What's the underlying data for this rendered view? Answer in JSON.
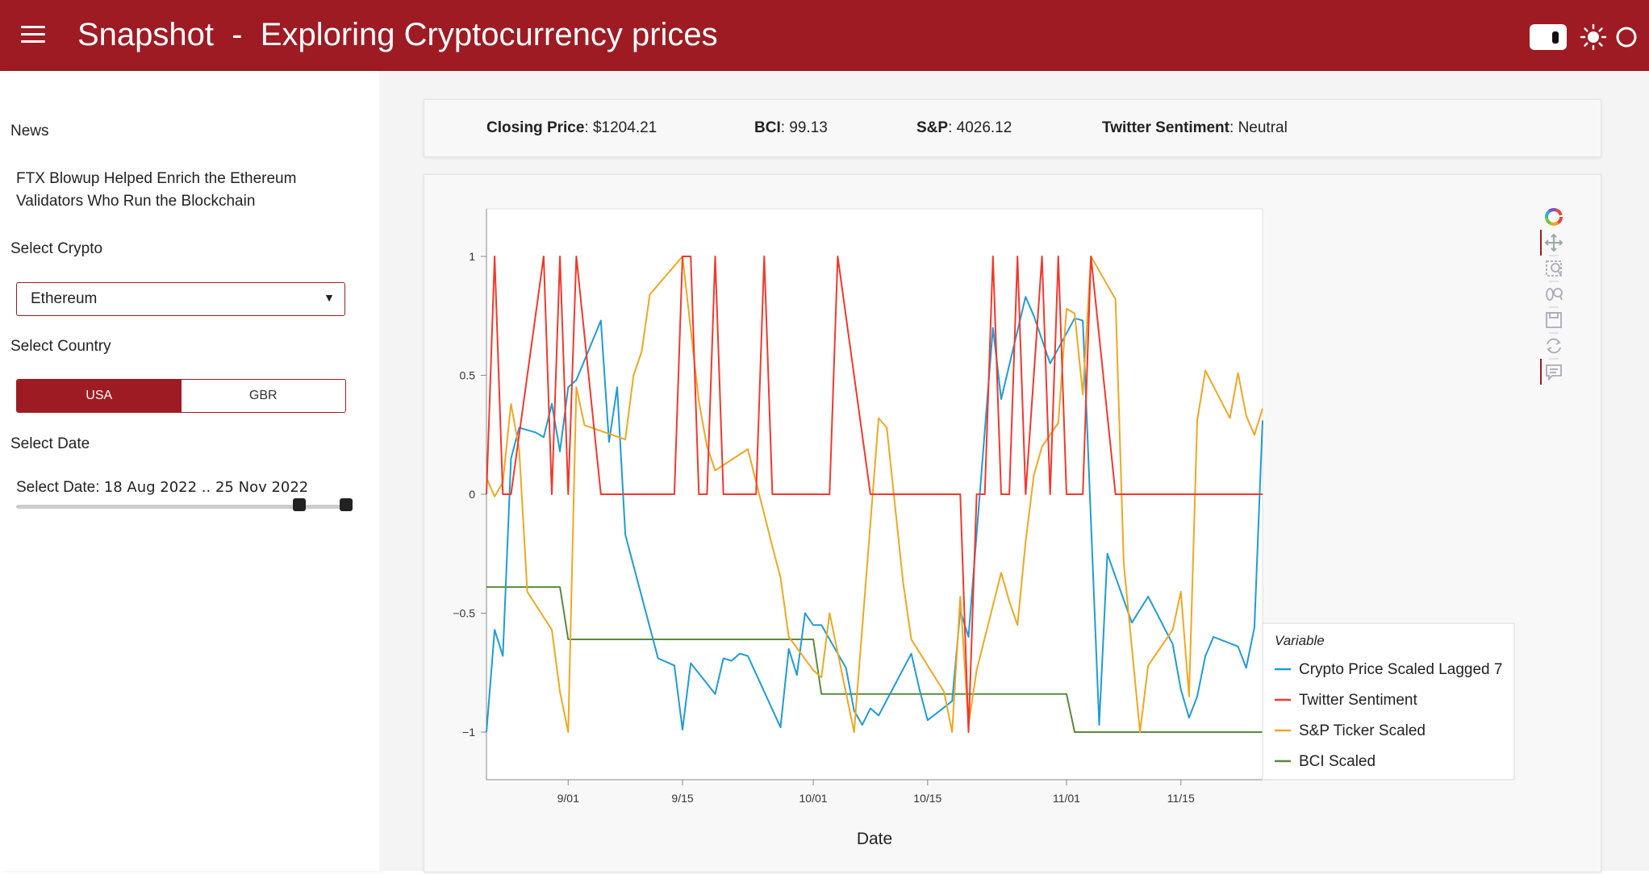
{
  "header": {
    "title": "Snapshot  -  Exploring Cryptocurrency prices",
    "menu_icon": "hamburger-icon",
    "toggle_icon": "toggle-icon",
    "theme_icon": "sun-icon",
    "brand_color": "#9e1b23"
  },
  "sidebar": {
    "news_label": "News",
    "news_headline": "FTX Blowup Helped Enrich the Ethereum Validators Who Run the Blockchain",
    "crypto_label": "Select Crypto",
    "crypto_value": "Ethereum",
    "crypto_dropdown_arrow": "▼",
    "country_label": "Select Country",
    "country_options": [
      "USA",
      "GBR"
    ],
    "country_selected": "USA",
    "date_label": "Select Date",
    "date_slider_prefix": "Select Date:",
    "date_slider_value": "18 Aug 2022 .. 25 Nov 2022"
  },
  "stats": {
    "closing_price_label": "Closing Price",
    "closing_price_value": "$1204.21",
    "bci_label": "BCI",
    "bci_value": "99.13",
    "sp_label": "S&P",
    "sp_value": "4026.12",
    "twitter_label": "Twitter Sentiment",
    "twitter_value": "Neutral"
  },
  "toolbar": {
    "icons": [
      "bokeh-logo-icon",
      "pan-icon",
      "box-zoom-icon",
      "wheel-zoom-icon",
      "save-icon",
      "reset-icon",
      "hover-icon"
    ]
  },
  "chart_data": {
    "type": "line",
    "title": "",
    "xlabel": "Date",
    "ylabel": "",
    "x_ticks": [
      "9/01",
      "9/15",
      "10/01",
      "10/15",
      "11/01",
      "11/15"
    ],
    "y_ticks": [
      "1",
      "0.5",
      "0",
      "−0.5",
      "−1"
    ],
    "ylim": [
      -1.2,
      1.2
    ],
    "xlim": [
      "2022-08-22",
      "2022-11-25"
    ],
    "grid": false,
    "legend_title": "Variable",
    "legend_position": "bottom-right",
    "series": [
      {
        "name": "Crypto Price Scaled Lagged 7",
        "color": "#1f9bd7",
        "points": [
          [
            "2022-08-22",
            -1.0
          ],
          [
            "2022-08-23",
            -0.57
          ],
          [
            "2022-08-24",
            -0.68
          ],
          [
            "2022-08-25",
            0.15
          ],
          [
            "2022-08-26",
            0.28
          ],
          [
            "2022-08-28",
            0.26
          ],
          [
            "2022-08-29",
            0.24
          ],
          [
            "2022-08-30",
            0.38
          ],
          [
            "2022-08-31",
            0.18
          ],
          [
            "2022-09-01",
            0.45
          ],
          [
            "2022-09-02",
            0.48
          ],
          [
            "2022-09-05",
            0.73
          ],
          [
            "2022-09-06",
            0.22
          ],
          [
            "2022-09-07",
            0.45
          ],
          [
            "2022-09-08",
            -0.17
          ],
          [
            "2022-09-12",
            -0.69
          ],
          [
            "2022-09-14",
            -0.72
          ],
          [
            "2022-09-15",
            -0.99
          ],
          [
            "2022-09-16",
            -0.71
          ],
          [
            "2022-09-19",
            -0.84
          ],
          [
            "2022-09-20",
            -0.69
          ],
          [
            "2022-09-21",
            -0.7
          ],
          [
            "2022-09-22",
            -0.67
          ],
          [
            "2022-09-23",
            -0.68
          ],
          [
            "2022-09-27",
            -0.98
          ],
          [
            "2022-09-28",
            -0.65
          ],
          [
            "2022-09-29",
            -0.76
          ],
          [
            "2022-09-30",
            -0.5
          ],
          [
            "2022-10-01",
            -0.55
          ],
          [
            "2022-10-02",
            -0.55
          ],
          [
            "2022-10-05",
            -0.73
          ],
          [
            "2022-10-06",
            -0.91
          ],
          [
            "2022-10-07",
            -0.97
          ],
          [
            "2022-10-08",
            -0.9
          ],
          [
            "2022-10-09",
            -0.93
          ],
          [
            "2022-10-13",
            -0.67
          ],
          [
            "2022-10-14",
            -0.82
          ],
          [
            "2022-10-15",
            -0.95
          ],
          [
            "2022-10-18",
            -0.87
          ],
          [
            "2022-10-19",
            -0.49
          ],
          [
            "2022-10-20",
            -0.6
          ],
          [
            "2022-10-23",
            0.7
          ],
          [
            "2022-10-24",
            0.4
          ],
          [
            "2022-10-27",
            0.83
          ],
          [
            "2022-10-28",
            0.75
          ],
          [
            "2022-10-30",
            0.55
          ],
          [
            "2022-11-02",
            0.74
          ],
          [
            "2022-11-03",
            0.73
          ],
          [
            "2022-11-05",
            -0.97
          ],
          [
            "2022-11-06",
            -0.25
          ],
          [
            "2022-11-09",
            -0.54
          ],
          [
            "2022-11-11",
            -0.43
          ],
          [
            "2022-11-14",
            -0.63
          ],
          [
            "2022-11-15",
            -0.82
          ],
          [
            "2022-11-16",
            -0.94
          ],
          [
            "2022-11-17",
            -0.85
          ],
          [
            "2022-11-18",
            -0.68
          ],
          [
            "2022-11-19",
            -0.6
          ],
          [
            "2022-11-22",
            -0.64
          ],
          [
            "2022-11-23",
            -0.73
          ],
          [
            "2022-11-24",
            -0.56
          ],
          [
            "2022-11-25",
            0.31
          ]
        ]
      },
      {
        "name": "Twitter Sentiment",
        "color": "#f2382c",
        "points": [
          [
            "2022-08-22",
            0
          ],
          [
            "2022-08-23",
            1
          ],
          [
            "2022-08-24",
            0
          ],
          [
            "2022-08-25",
            0
          ],
          [
            "2022-08-29",
            1
          ],
          [
            "2022-08-30",
            0
          ],
          [
            "2022-08-31",
            1
          ],
          [
            "2022-09-01",
            0
          ],
          [
            "2022-09-02",
            1
          ],
          [
            "2022-09-05",
            0
          ],
          [
            "2022-09-14",
            0
          ],
          [
            "2022-09-15",
            1
          ],
          [
            "2022-09-16",
            1
          ],
          [
            "2022-09-17",
            0
          ],
          [
            "2022-09-18",
            0
          ],
          [
            "2022-09-19",
            1
          ],
          [
            "2022-09-20",
            0
          ],
          [
            "2022-09-24",
            0
          ],
          [
            "2022-09-25",
            1
          ],
          [
            "2022-09-26",
            0
          ],
          [
            "2022-10-03",
            0
          ],
          [
            "2022-10-04",
            1
          ],
          [
            "2022-10-08",
            0
          ],
          [
            "2022-10-19",
            0
          ],
          [
            "2022-10-20",
            -1
          ],
          [
            "2022-10-21",
            0
          ],
          [
            "2022-10-22",
            0
          ],
          [
            "2022-10-23",
            1
          ],
          [
            "2022-10-24",
            0
          ],
          [
            "2022-10-25",
            0
          ],
          [
            "2022-10-26",
            1
          ],
          [
            "2022-10-27",
            0
          ],
          [
            "2022-10-29",
            1
          ],
          [
            "2022-10-30",
            0
          ],
          [
            "2022-10-31",
            1
          ],
          [
            "2022-11-01",
            0
          ],
          [
            "2022-11-03",
            0
          ],
          [
            "2022-11-04",
            1
          ],
          [
            "2022-11-07",
            0
          ],
          [
            "2022-11-25",
            0
          ]
        ]
      },
      {
        "name": "S&P Ticker Scaled",
        "color": "#f0a722",
        "points": [
          [
            "2022-08-22",
            0.07
          ],
          [
            "2022-08-23",
            -0.01
          ],
          [
            "2022-08-24",
            0.05
          ],
          [
            "2022-08-25",
            0.38
          ],
          [
            "2022-08-26",
            0.19
          ],
          [
            "2022-08-27",
            -0.41
          ],
          [
            "2022-08-30",
            -0.57
          ],
          [
            "2022-08-31",
            -0.83
          ],
          [
            "2022-09-01",
            -1.0
          ],
          [
            "2022-09-02",
            0.45
          ],
          [
            "2022-09-03",
            0.29
          ],
          [
            "2022-09-08",
            0.23
          ],
          [
            "2022-09-09",
            0.5
          ],
          [
            "2022-09-10",
            0.6
          ],
          [
            "2022-09-11",
            0.84
          ],
          [
            "2022-09-15",
            1.0
          ],
          [
            "2022-09-17",
            0.39
          ],
          [
            "2022-09-18",
            0.2
          ],
          [
            "2022-09-19",
            0.1
          ],
          [
            "2022-09-23",
            0.19
          ],
          [
            "2022-09-26",
            -0.22
          ],
          [
            "2022-09-27",
            -0.35
          ],
          [
            "2022-09-28",
            -0.6
          ],
          [
            "2022-10-01",
            -0.74
          ],
          [
            "2022-10-02",
            -0.77
          ],
          [
            "2022-10-03",
            -0.5
          ],
          [
            "2022-10-06",
            -1.0
          ],
          [
            "2022-10-09",
            0.32
          ],
          [
            "2022-10-10",
            0.28
          ],
          [
            "2022-10-12",
            -0.37
          ],
          [
            "2022-10-13",
            -0.61
          ],
          [
            "2022-10-17",
            -0.83
          ],
          [
            "2022-10-18",
            -1.0
          ],
          [
            "2022-10-19",
            -0.43
          ],
          [
            "2022-10-20",
            -0.97
          ],
          [
            "2022-10-21",
            -0.74
          ],
          [
            "2022-10-24",
            -0.33
          ],
          [
            "2022-10-25",
            -0.45
          ],
          [
            "2022-10-26",
            -0.55
          ],
          [
            "2022-10-27",
            -0.2
          ],
          [
            "2022-10-28",
            0.08
          ],
          [
            "2022-10-29",
            0.2
          ],
          [
            "2022-10-31",
            0.3
          ],
          [
            "2022-11-01",
            0.78
          ],
          [
            "2022-11-02",
            0.76
          ],
          [
            "2022-11-03",
            0.42
          ],
          [
            "2022-11-04",
            1.0
          ],
          [
            "2022-11-07",
            0.82
          ],
          [
            "2022-11-08",
            -0.29
          ],
          [
            "2022-11-10",
            -1.0
          ],
          [
            "2022-11-11",
            -0.72
          ],
          [
            "2022-11-14",
            -0.57
          ],
          [
            "2022-11-15",
            -0.41
          ],
          [
            "2022-11-16",
            -0.85
          ],
          [
            "2022-11-17",
            0.31
          ],
          [
            "2022-11-18",
            0.52
          ],
          [
            "2022-11-21",
            0.32
          ],
          [
            "2022-11-22",
            0.51
          ],
          [
            "2022-11-23",
            0.33
          ],
          [
            "2022-11-24",
            0.25
          ],
          [
            "2022-11-25",
            0.36
          ]
        ]
      },
      {
        "name": "BCI Scaled",
        "color": "#5a8a3a",
        "points": [
          [
            "2022-08-22",
            -0.39
          ],
          [
            "2022-08-31",
            -0.39
          ],
          [
            "2022-09-01",
            -0.61
          ],
          [
            "2022-10-01",
            -0.61
          ],
          [
            "2022-10-02",
            -0.84
          ],
          [
            "2022-11-01",
            -0.84
          ],
          [
            "2022-11-02",
            -1.0
          ],
          [
            "2022-11-25",
            -1.0
          ]
        ]
      }
    ]
  }
}
